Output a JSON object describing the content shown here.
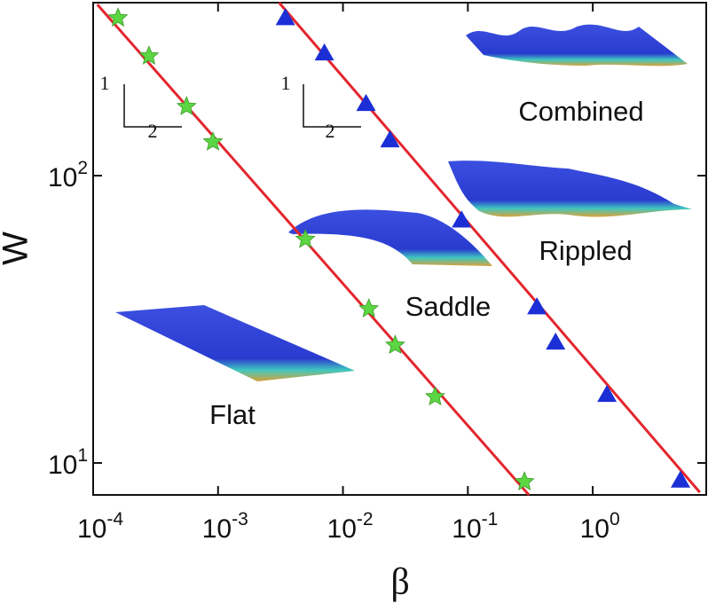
{
  "chart_data": {
    "type": "scatter",
    "xlabel": "β",
    "ylabel": "W",
    "xscale": "log",
    "yscale": "log",
    "xlim": [
      0.0001,
      8.1
    ],
    "ylim": [
      7.74,
      400
    ],
    "xticks": [
      {
        "value": 0.0001,
        "label": "10^-4"
      },
      {
        "value": 0.001,
        "label": "10^-3"
      },
      {
        "value": 0.01,
        "label": "10^-2"
      },
      {
        "value": 0.1,
        "label": "10^-1"
      },
      {
        "value": 1,
        "label": "10^0"
      }
    ],
    "yticks": [
      {
        "value": 10,
        "label": "10^1"
      },
      {
        "value": 100,
        "label": "10^2"
      }
    ],
    "series": [
      {
        "marker": "star",
        "color": "#5cd642",
        "x": [
          0.000158,
          0.00028,
          0.00056,
          0.00091,
          0.005,
          0.0161,
          0.0262,
          0.0547,
          0.284
        ],
        "values": [
          354,
          261,
          174,
          131,
          60,
          34.4,
          25.7,
          17,
          8.6
        ]
      },
      {
        "marker": "triangle",
        "color": "#1c2fd6",
        "x": [
          0.00346,
          0.0071,
          0.0153,
          0.0238,
          0.089,
          0.357,
          0.504,
          1.3,
          5.04
        ],
        "values": [
          354,
          267,
          178,
          133,
          70,
          34.9,
          26.3,
          17.3,
          8.7
        ]
      },
      {
        "marker": "line",
        "color": "#e3262e",
        "x": [
          0.000108,
          0.308
        ],
        "values": [
          394,
          7.74
        ]
      },
      {
        "marker": "line",
        "color": "#e3262e",
        "x": [
          0.00308,
          7.2
        ],
        "values": [
          400,
          7.9
        ]
      }
    ],
    "annotations": [
      "1",
      "2",
      "1",
      "2",
      "Combined",
      "Rippled",
      "Saddle",
      "Flat"
    ]
  }
}
